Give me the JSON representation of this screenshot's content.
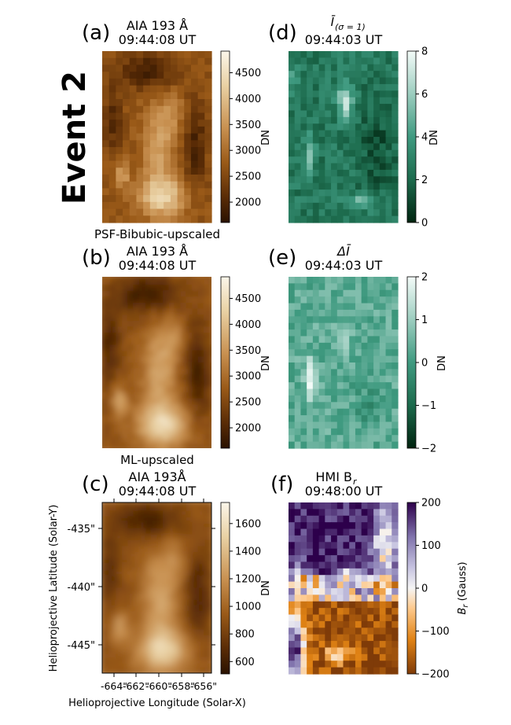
{
  "event_label": "Event 2",
  "panels": {
    "a": {
      "letter": "(a)",
      "title1": "AIA 193 Å",
      "title2": "09:44:08 UT",
      "caption": "PSF-Bibubic-upscaled"
    },
    "b": {
      "letter": "(b)",
      "title1": "AIA 193 Å",
      "title2": "09:44:08 UT",
      "caption": "ML-upscaled"
    },
    "c": {
      "letter": "(c)",
      "title1": "AIA 193Å",
      "title2": "09:44:08 UT"
    },
    "d": {
      "letter": "(d)",
      "title1": "Ī",
      "title1_sub": "(σ = 1)",
      "title2": "09:44:03 UT"
    },
    "e": {
      "letter": "(e)",
      "title1": "ΔĪ",
      "title2": "09:44:03 UT"
    },
    "f": {
      "letter": "(f)",
      "title1": "HMI B",
      "title1_sub": "r",
      "title2": "09:48:00 UT"
    }
  },
  "colorbars": {
    "a": {
      "label": "DN",
      "ticks": [
        "4500",
        "4000",
        "3500",
        "3000",
        "2500",
        "2000"
      ],
      "colormap": "brown-copper"
    },
    "b": {
      "label": "DN",
      "ticks": [
        "4500",
        "4000",
        "3500",
        "3000",
        "2500",
        "2000"
      ],
      "colormap": "brown-copper"
    },
    "c": {
      "label": "DN",
      "ticks": [
        "1600",
        "1400",
        "1200",
        "1000",
        "800",
        "600"
      ],
      "colormap": "brown-copper"
    },
    "d": {
      "label": "DN",
      "ticks": [
        "8",
        "6",
        "4",
        "2",
        "0"
      ],
      "colormap": "teal"
    },
    "e": {
      "label": "DN",
      "ticks": [
        "2",
        "1",
        "0",
        "−1",
        "−2"
      ],
      "colormap": "teal"
    },
    "f": {
      "label": "B",
      "label_sub": "r",
      "label_suffix": " (Gauss)",
      "ticks": [
        "200",
        "100",
        "0",
        "−100",
        "−200"
      ],
      "colormap": "orange-purple"
    }
  },
  "axes_c": {
    "ylabel": "Helioprojective Latitude (Solar-Y)",
    "xlabel": "Helioprojective Longitude (Solar-X)",
    "yticks": [
      "-435\"",
      "-440\"",
      "-445\""
    ],
    "xticks": [
      "-664\"",
      "-662\"",
      "-660\"",
      "-658\"",
      "-656\""
    ]
  }
}
